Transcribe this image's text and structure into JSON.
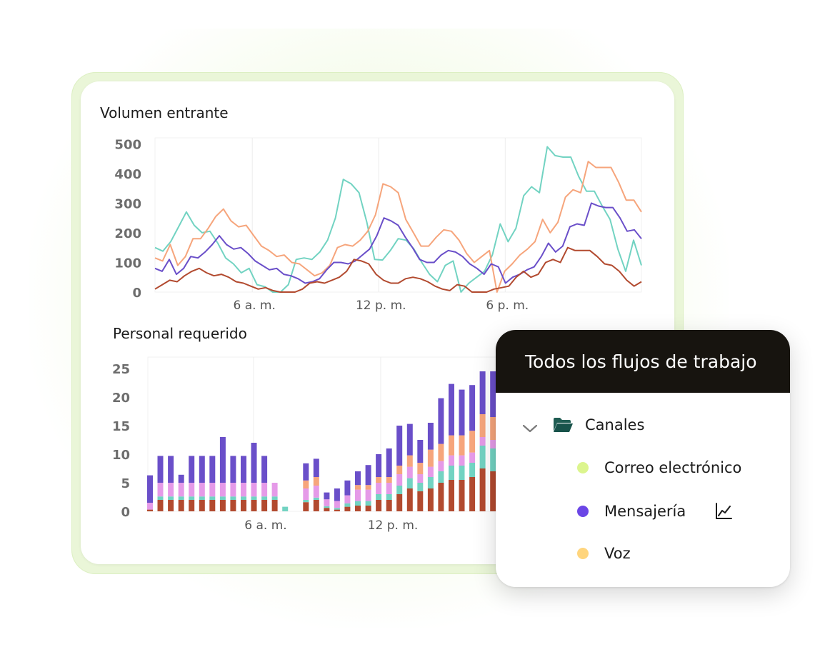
{
  "colors": {
    "teal": "#72d3c2",
    "salmon": "#f6a57c",
    "purple": "#6a4fc9",
    "rust": "#b24a2f",
    "pink": "#e59ae8",
    "correo": "#dcf58e",
    "mensajeria": "#6b46e6",
    "voz": "#ffd57d"
  },
  "chart_data": [
    {
      "type": "line",
      "title": "Volumen entrante",
      "ylim": [
        0,
        520
      ],
      "yticks": [
        0,
        100,
        200,
        300,
        400,
        500
      ],
      "xticks": [
        "6 a. m.",
        "12 p. m.",
        "6 p. m."
      ],
      "grid": "vertical",
      "series": [
        {
          "values": [
            150,
            138,
            170,
            220,
            270,
            225,
            200,
            205,
            165,
            115,
            95,
            65,
            80,
            25,
            18,
            0,
            0,
            25,
            110,
            115,
            110,
            135,
            175,
            250,
            380,
            365,
            335,
            235,
            110,
            108,
            140,
            180,
            175,
            145,
            100,
            60,
            35,
            90,
            105,
            0,
            30,
            50,
            70,
            125,
            230,
            170,
            215,
            325,
            355,
            335,
            490,
            460,
            455,
            455,
            390,
            340,
            340,
            290,
            245,
            145,
            70,
            175,
            90
          ]
        },
        {
          "values": [
            115,
            105,
            160,
            90,
            120,
            180,
            180,
            215,
            255,
            280,
            240,
            220,
            225,
            190,
            155,
            140,
            120,
            125,
            100,
            95,
            75,
            55,
            65,
            90,
            150,
            160,
            155,
            175,
            205,
            260,
            365,
            355,
            335,
            245,
            200,
            155,
            155,
            185,
            210,
            205,
            175,
            130,
            100,
            120,
            140,
            0,
            70,
            95,
            125,
            145,
            170,
            245,
            200,
            235,
            320,
            345,
            335,
            440,
            420,
            420,
            420,
            370,
            310,
            310,
            270
          ]
        },
        {
          "values": [
            80,
            70,
            110,
            60,
            80,
            120,
            115,
            135,
            160,
            190,
            160,
            145,
            150,
            130,
            105,
            90,
            75,
            80,
            60,
            55,
            45,
            30,
            35,
            45,
            75,
            100,
            100,
            95,
            105,
            125,
            145,
            190,
            250,
            240,
            225,
            185,
            150,
            110,
            100,
            100,
            125,
            140,
            135,
            120,
            95,
            80,
            60,
            95,
            85,
            30,
            50,
            60,
            75,
            85,
            120,
            165,
            135,
            155,
            220,
            230,
            225,
            300,
            290,
            285,
            285,
            250,
            205,
            210,
            180
          ]
        },
        {
          "values": [
            10,
            25,
            40,
            35,
            55,
            70,
            80,
            65,
            55,
            60,
            50,
            35,
            30,
            20,
            10,
            15,
            5,
            0,
            0,
            0,
            10,
            30,
            35,
            30,
            40,
            50,
            70,
            110,
            105,
            95,
            60,
            40,
            30,
            30,
            45,
            50,
            45,
            35,
            20,
            10,
            5,
            25,
            20,
            0,
            0,
            0,
            10,
            15,
            20,
            50,
            70,
            50,
            60,
            100,
            110,
            100,
            150,
            140,
            140,
            140,
            120,
            95,
            90,
            70,
            40,
            20,
            35
          ]
        }
      ]
    },
    {
      "type": "bar",
      "title": "Personal requerido",
      "ylim": [
        0,
        27
      ],
      "yticks": [
        0,
        5,
        10,
        15,
        20,
        25
      ],
      "xticks": [
        "6 a. m.",
        "12 p. m."
      ],
      "stack_order": [
        "rust",
        "teal",
        "pink",
        "salmon",
        "purple"
      ],
      "series": [
        {
          "name": "rust",
          "values": [
            0.3,
            2,
            2,
            2,
            2,
            2,
            2,
            2,
            2,
            2,
            2,
            2,
            2,
            0,
            0,
            1.6,
            2,
            0.6,
            0.3,
            0.8,
            1,
            1,
            2,
            2,
            3,
            4,
            3.5,
            4,
            5,
            5.5,
            5.5,
            6,
            7.5,
            7,
            7,
            7,
            6,
            5,
            5
          ]
        },
        {
          "name": "teal",
          "values": [
            0,
            0.6,
            0.6,
            0.6,
            0.6,
            0.6,
            0.6,
            0.6,
            0.6,
            0.6,
            0.6,
            0.6,
            0.6,
            0.8,
            0,
            0.4,
            0.4,
            0.3,
            0.3,
            0.6,
            0.8,
            0.8,
            1,
            1,
            1.5,
            1.8,
            1.5,
            2,
            2,
            2.5,
            2.5,
            2.5,
            4,
            4,
            4,
            4,
            3.5,
            2.5,
            2.5
          ]
        },
        {
          "name": "pink",
          "values": [
            1.2,
            2.4,
            2.4,
            2.4,
            2.4,
            2.4,
            2.4,
            2.4,
            2.4,
            2.4,
            2.4,
            2.4,
            2.4,
            0,
            0,
            2,
            2.1,
            1.2,
            1.2,
            1.4,
            2,
            2,
            2,
            2,
            2,
            2,
            1.5,
            1.8,
            1.8,
            1.8,
            1.8,
            1.8,
            1.5,
            1.5,
            1.5,
            1.5,
            1.3,
            1.5,
            1.5
          ]
        },
        {
          "name": "salmon",
          "values": [
            0,
            0,
            0,
            0,
            0,
            0,
            0,
            0,
            0,
            0,
            0,
            0,
            0,
            0,
            0,
            1.4,
            1.5,
            0,
            0,
            0,
            0.8,
            0.8,
            1,
            1,
            1.5,
            2,
            2,
            3,
            3,
            3.5,
            3.5,
            3.8,
            4,
            4,
            4,
            4,
            3,
            2.8,
            3.2
          ]
        },
        {
          "name": "purple",
          "values": [
            4.8,
            4.7,
            4.7,
            1.4,
            4.7,
            4.7,
            4.7,
            8,
            4.7,
            4.7,
            7,
            4.7,
            0,
            0,
            0,
            3,
            3.2,
            1.2,
            2.2,
            2.6,
            2.4,
            3.5,
            4,
            5,
            7,
            5.5,
            4,
            4.7,
            8,
            9,
            8,
            8,
            7.5,
            8,
            8.5,
            7,
            5,
            7,
            6.3
          ]
        }
      ]
    }
  ],
  "panel": {
    "title": "Todos los flujos de trabajo",
    "group_label": "Canales",
    "items": [
      {
        "label": "Correo electrónico"
      },
      {
        "label": "Mensajería"
      },
      {
        "label": "Voz"
      }
    ]
  }
}
